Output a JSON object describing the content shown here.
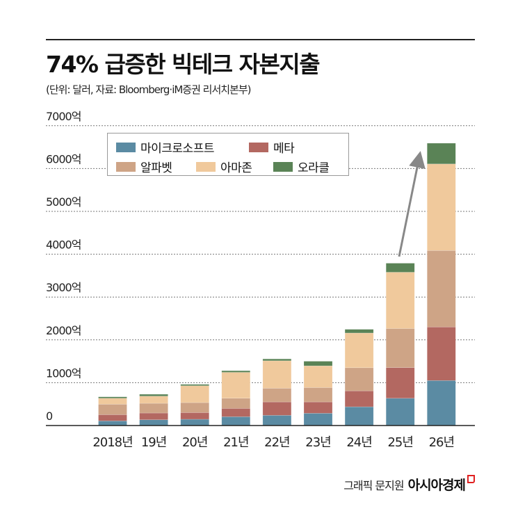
{
  "header": {
    "title": "74% 급증한 빅테크 자본지출",
    "subtitle": "(단위: 달러, 자료: Bloomberg·iM증권 리서치본부)"
  },
  "footer": {
    "credit": "그래픽 문지원",
    "brand": "아시아경제"
  },
  "chart_data": {
    "type": "bar",
    "stacked": true,
    "title": "74% 급증한 빅테크 자본지출",
    "categories": [
      "2018년",
      "19년",
      "20년",
      "21년",
      "22년",
      "23년",
      "24년",
      "25년",
      "26년"
    ],
    "ylim": [
      0,
      7000
    ],
    "yticks": [
      0,
      1000,
      2000,
      3000,
      4000,
      5000,
      6000,
      7000
    ],
    "ytick_labels": [
      "0",
      "1000억",
      "2000억",
      "3000억",
      "4000억",
      "5000억",
      "6000억",
      "7000억"
    ],
    "grid": true,
    "legend_position": "top-left",
    "series": [
      {
        "name": "마이크로소프트",
        "color": "#5b8ba3",
        "values": [
          108,
          135,
          146,
          205,
          238,
          286,
          437,
          636,
          1051
        ]
      },
      {
        "name": "메타",
        "color": "#b36861",
        "values": [
          146,
          157,
          156,
          195,
          313,
          265,
          373,
          717,
          1251
        ]
      },
      {
        "name": "알파벳",
        "color": "#cea486",
        "values": [
          243,
          227,
          233,
          237,
          319,
          335,
          540,
          911,
          1784
        ]
      },
      {
        "name": "아마존",
        "color": "#f0c99c",
        "values": [
          140,
          167,
          394,
          605,
          642,
          507,
          810,
          1315,
          2021
        ]
      },
      {
        "name": "오라클",
        "color": "#5a8356",
        "values": [
          33,
          44,
          32,
          38,
          43,
          108,
          86,
          211,
          485
        ]
      }
    ],
    "annotation": "arrow from 25년 to 26년"
  }
}
